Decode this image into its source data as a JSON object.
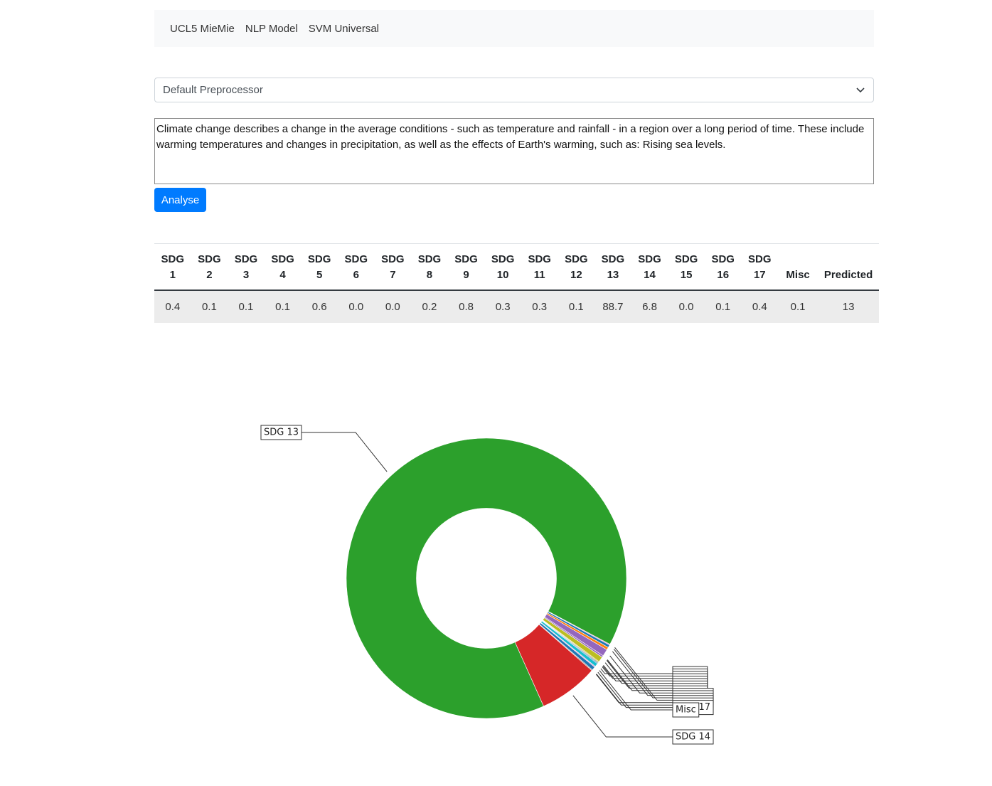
{
  "nav": {
    "items": [
      "UCL5 MieMie",
      "NLP Model",
      "SVM Universal"
    ]
  },
  "select": {
    "value": "Default Preprocessor"
  },
  "textarea": {
    "text": "Climate change describes a change in the average conditions - such as temperature and rainfall - in a region over a long period of time. These include warming temperatures and changes in precipitation, as well as the effects of Earth's warming, such as: Rising sea levels."
  },
  "button": {
    "label": "Analyse"
  },
  "table": {
    "headers": [
      "SDG 1",
      "SDG 2",
      "SDG 3",
      "SDG 4",
      "SDG 5",
      "SDG 6",
      "SDG 7",
      "SDG 8",
      "SDG 9",
      "SDG 10",
      "SDG 11",
      "SDG 12",
      "SDG 13",
      "SDG 14",
      "SDG 15",
      "SDG 16",
      "SDG 17",
      "Misc",
      "Predicted"
    ],
    "rows": [
      [
        "0.4",
        "0.1",
        "0.1",
        "0.1",
        "0.6",
        "0.0",
        "0.0",
        "0.2",
        "0.8",
        "0.3",
        "0.3",
        "0.1",
        "88.7",
        "6.8",
        "0.0",
        "0.1",
        "0.4",
        "0.1",
        "13"
      ]
    ]
  },
  "chart_data": {
    "type": "pie",
    "hole": 0.5,
    "categories": [
      "SDG 1",
      "SDG 2",
      "SDG 3",
      "SDG 4",
      "SDG 5",
      "SDG 6",
      "SDG 7",
      "SDG 8",
      "SDG 9",
      "SDG 10",
      "SDG 11",
      "SDG 12",
      "SDG 13",
      "SDG 14",
      "SDG 15",
      "SDG 16",
      "SDG 17",
      "Misc"
    ],
    "values": [
      0.4,
      0.1,
      0.1,
      0.1,
      0.6,
      0.0,
      0.0,
      0.2,
      0.8,
      0.3,
      0.3,
      0.1,
      88.7,
      6.8,
      0.0,
      0.1,
      0.4,
      0.1
    ],
    "colors": [
      "#17becf",
      "#1f77b4",
      "#7f7f7f",
      "#bcbd22",
      "#bcbd22",
      "#8c564b",
      "#e377c2",
      "#9467bd",
      "#9467bd",
      "#ff7f0e",
      "#1f77b4",
      "#e377c2",
      "#2ca02c",
      "#d62728",
      "#7f7f7f",
      "#8c564b",
      "#1f77b4",
      "#e377c2"
    ]
  }
}
